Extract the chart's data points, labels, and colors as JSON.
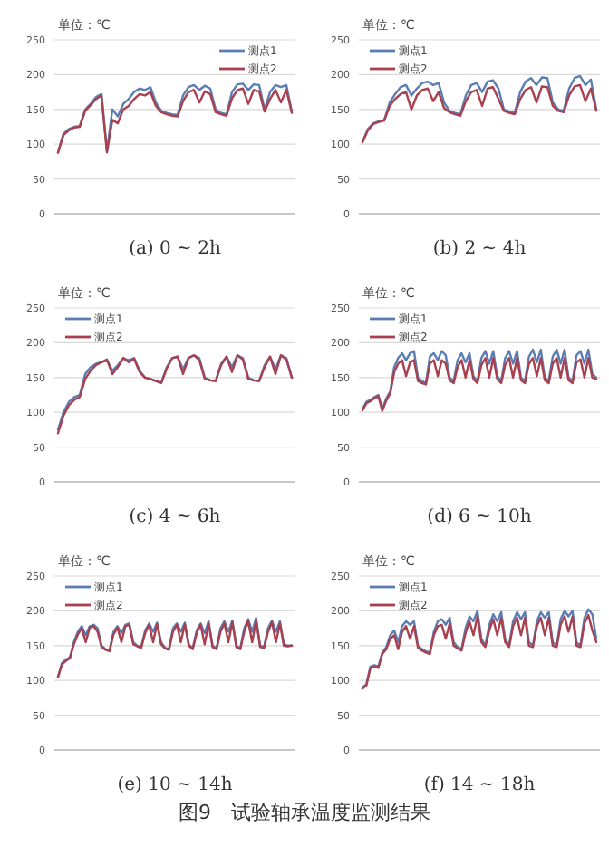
{
  "chart_data": [
    {
      "type": "line",
      "xlabel": "(a) 0 ~ 2h",
      "ylabel": "单位：℃",
      "ylim": [
        0,
        250
      ],
      "yticks": [
        0,
        50,
        100,
        150,
        200,
        250
      ],
      "grid": "y",
      "legend": "top right",
      "tick_labels": "y",
      "categories": [
        null,
        null,
        null,
        null,
        null,
        null,
        null,
        null,
        null,
        null,
        null,
        null,
        null,
        null,
        null,
        null,
        null,
        null,
        null,
        null,
        null,
        null,
        null,
        null,
        null,
        null,
        null,
        null,
        null,
        null,
        null,
        null,
        null,
        null,
        null,
        null,
        null,
        null,
        null,
        null,
        null,
        null,
        null,
        null
      ],
      "series": [
        {
          "name": "测点1",
          "color": "#5b7db3",
          "values": [
            88,
            115,
            122,
            125,
            126,
            150,
            158,
            168,
            172,
            90,
            150,
            140,
            158,
            165,
            175,
            180,
            178,
            182,
            160,
            148,
            145,
            143,
            142,
            170,
            182,
            185,
            178,
            184,
            180,
            150,
            145,
            143,
            175,
            186,
            187,
            178,
            186,
            185,
            150,
            175,
            185,
            182,
            185,
            147
          ]
        },
        {
          "name": "测点2",
          "color": "#a8404f",
          "values": [
            88,
            113,
            120,
            124,
            125,
            148,
            156,
            165,
            170,
            88,
            135,
            130,
            150,
            155,
            165,
            172,
            170,
            175,
            155,
            146,
            143,
            141,
            140,
            162,
            175,
            178,
            160,
            176,
            172,
            146,
            143,
            141,
            166,
            178,
            180,
            158,
            178,
            176,
            147,
            165,
            178,
            160,
            178,
            145
          ]
        }
      ]
    },
    {
      "type": "line",
      "xlabel": "(b) 2 ~ 4h",
      "ylabel": "单位：℃",
      "ylim": [
        0,
        250
      ],
      "yticks": [
        0,
        50,
        100,
        150,
        200,
        250
      ],
      "grid": "y",
      "legend": "top left",
      "tick_labels": "y",
      "categories": [
        null,
        null,
        null,
        null,
        null,
        null,
        null,
        null,
        null,
        null,
        null,
        null,
        null,
        null,
        null,
        null,
        null,
        null,
        null,
        null,
        null,
        null,
        null,
        null,
        null,
        null,
        null,
        null,
        null,
        null,
        null,
        null,
        null,
        null,
        null,
        null,
        null,
        null,
        null,
        null,
        null,
        null,
        null,
        null
      ],
      "series": [
        {
          "name": "测点1",
          "color": "#5b7db3",
          "values": [
            103,
            122,
            130,
            133,
            135,
            160,
            172,
            182,
            185,
            170,
            180,
            188,
            190,
            185,
            188,
            160,
            148,
            145,
            143,
            170,
            185,
            188,
            175,
            190,
            192,
            180,
            150,
            147,
            145,
            175,
            190,
            195,
            185,
            196,
            195,
            160,
            150,
            148,
            180,
            195,
            198,
            185,
            193,
            150
          ]
        },
        {
          "name": "测点2",
          "color": "#a8404f",
          "values": [
            103,
            120,
            129,
            132,
            134,
            155,
            165,
            172,
            175,
            150,
            170,
            178,
            180,
            162,
            175,
            152,
            146,
            143,
            141,
            162,
            175,
            178,
            155,
            180,
            182,
            165,
            148,
            145,
            143,
            165,
            178,
            182,
            160,
            183,
            182,
            155,
            148,
            146,
            170,
            183,
            185,
            162,
            180,
            148
          ]
        }
      ]
    },
    {
      "type": "line",
      "xlabel": "(c) 4 ~ 6h",
      "ylabel": "单位：℃",
      "ylim": [
        0,
        250
      ],
      "yticks": [
        0,
        50,
        100,
        150,
        200,
        250
      ],
      "grid": "y",
      "legend": "top left",
      "tick_labels": "y",
      "categories": [
        null,
        null,
        null,
        null,
        null,
        null,
        null,
        null,
        null,
        null,
        null,
        null,
        null,
        null,
        null,
        null,
        null,
        null,
        null,
        null,
        null,
        null,
        null,
        null,
        null,
        null,
        null,
        null,
        null,
        null,
        null,
        null,
        null,
        null,
        null,
        null,
        null,
        null,
        null,
        null,
        null,
        null,
        null,
        null
      ],
      "series": [
        {
          "name": "测点1",
          "color": "#5b7db3",
          "values": [
            75,
            100,
            115,
            122,
            125,
            155,
            165,
            170,
            172,
            175,
            160,
            168,
            178,
            175,
            178,
            160,
            150,
            148,
            145,
            143,
            165,
            178,
            180,
            162,
            178,
            182,
            178,
            150,
            146,
            145,
            170,
            180,
            165,
            182,
            178,
            150,
            146,
            145,
            168,
            180,
            162,
            182,
            178,
            150
          ]
        },
        {
          "name": "测点2",
          "color": "#a8404f",
          "values": [
            70,
            95,
            110,
            118,
            122,
            148,
            160,
            168,
            172,
            176,
            155,
            165,
            178,
            172,
            177,
            158,
            150,
            148,
            145,
            142,
            163,
            178,
            180,
            155,
            178,
            182,
            175,
            148,
            146,
            145,
            168,
            180,
            158,
            182,
            176,
            148,
            146,
            145,
            165,
            180,
            155,
            182,
            176,
            150
          ]
        }
      ]
    },
    {
      "type": "line",
      "xlabel": "(d) 6 ~ 10h",
      "ylabel": "单位：℃",
      "ylim": [
        0,
        250
      ],
      "yticks": [
        0,
        50,
        100,
        150,
        200,
        250
      ],
      "grid": "y",
      "legend": "top left",
      "tick_labels": "y",
      "categories": [
        null,
        null,
        null,
        null,
        null,
        null,
        null,
        null,
        null,
        null,
        null,
        null,
        null,
        null,
        null,
        null,
        null,
        null,
        null,
        null,
        null,
        null,
        null,
        null,
        null,
        null,
        null,
        null,
        null,
        null,
        null,
        null,
        null,
        null,
        null,
        null,
        null,
        null,
        null,
        null,
        null,
        null,
        null,
        null,
        null,
        null,
        null,
        null,
        null,
        null,
        null,
        null,
        null,
        null,
        null,
        null,
        null,
        null,
        null,
        null
      ],
      "series": [
        {
          "name": "测点1",
          "color": "#5b7db3",
          "values": [
            105,
            115,
            118,
            122,
            125,
            105,
            120,
            130,
            165,
            178,
            185,
            175,
            185,
            188,
            150,
            145,
            142,
            180,
            185,
            175,
            188,
            182,
            150,
            145,
            175,
            185,
            172,
            185,
            152,
            145,
            178,
            188,
            170,
            188,
            152,
            145,
            178,
            188,
            170,
            188,
            150,
            145,
            180,
            190,
            172,
            190,
            150,
            145,
            180,
            190,
            170,
            190,
            150,
            145,
            182,
            188,
            170,
            190,
            155,
            150
          ]
        },
        {
          "name": "测点2",
          "color": "#a8404f",
          "values": [
            103,
            113,
            116,
            120,
            123,
            102,
            117,
            127,
            158,
            170,
            175,
            152,
            172,
            175,
            145,
            142,
            140,
            170,
            175,
            152,
            175,
            170,
            146,
            142,
            165,
            175,
            150,
            175,
            148,
            142,
            168,
            178,
            150,
            178,
            148,
            142,
            168,
            178,
            150,
            178,
            146,
            142,
            170,
            178,
            152,
            178,
            146,
            142,
            170,
            178,
            150,
            178,
            146,
            142,
            172,
            176,
            150,
            178,
            150,
            148
          ]
        }
      ]
    },
    {
      "type": "line",
      "xlabel": "(e) 10 ~ 14h",
      "ylabel": "单位：℃",
      "ylim": [
        0,
        250
      ],
      "yticks": [
        0,
        50,
        100,
        150,
        200,
        250
      ],
      "grid": "y",
      "legend": "top left",
      "tick_labels": "y",
      "categories": [
        null,
        null,
        null,
        null,
        null,
        null,
        null,
        null,
        null,
        null,
        null,
        null,
        null,
        null,
        null,
        null,
        null,
        null,
        null,
        null,
        null,
        null,
        null,
        null,
        null,
        null,
        null,
        null,
        null,
        null,
        null,
        null,
        null,
        null,
        null,
        null,
        null,
        null,
        null,
        null,
        null,
        null,
        null,
        null,
        null,
        null,
        null,
        null,
        null,
        null,
        null,
        null,
        null,
        null,
        null,
        null,
        null,
        null,
        null,
        null
      ],
      "series": [
        {
          "name": "测点1",
          "color": "#5b7db3",
          "values": [
            105,
            125,
            130,
            133,
            155,
            170,
            178,
            165,
            178,
            180,
            175,
            150,
            145,
            143,
            170,
            178,
            168,
            180,
            182,
            155,
            150,
            148,
            172,
            182,
            170,
            183,
            155,
            147,
            145,
            175,
            182,
            170,
            183,
            152,
            146,
            172,
            182,
            168,
            185,
            150,
            146,
            175,
            185,
            170,
            186,
            150,
            146,
            175,
            188,
            170,
            190,
            150,
            148,
            175,
            186,
            170,
            185,
            152,
            150,
            150
          ]
        },
        {
          "name": "测点2",
          "color": "#a8404f",
          "values": [
            105,
            123,
            128,
            132,
            152,
            166,
            175,
            155,
            176,
            178,
            170,
            148,
            144,
            142,
            166,
            176,
            155,
            178,
            180,
            152,
            149,
            147,
            168,
            180,
            155,
            181,
            152,
            146,
            144,
            170,
            180,
            155,
            181,
            150,
            145,
            168,
            180,
            152,
            182,
            148,
            145,
            170,
            182,
            155,
            184,
            148,
            145,
            170,
            185,
            155,
            186,
            148,
            147,
            170,
            184,
            155,
            182,
            150,
            149,
            150
          ]
        }
      ]
    },
    {
      "type": "line",
      "xlabel": "(f) 14 ~ 18h",
      "ylabel": "单位：℃",
      "ylim": [
        0,
        250
      ],
      "yticks": [
        0,
        50,
        100,
        150,
        200,
        250
      ],
      "grid": "y",
      "legend": "top left",
      "tick_labels": "y",
      "annotations": [
        "图9　试验轴承温度监测结果"
      ],
      "categories": [
        null,
        null,
        null,
        null,
        null,
        null,
        null,
        null,
        null,
        null,
        null,
        null,
        null,
        null,
        null,
        null,
        null,
        null,
        null,
        null,
        null,
        null,
        null,
        null,
        null,
        null,
        null,
        null,
        null,
        null,
        null,
        null,
        null,
        null,
        null,
        null,
        null,
        null,
        null,
        null,
        null,
        null,
        null,
        null,
        null,
        null,
        null,
        null,
        null,
        null,
        null,
        null,
        null,
        null,
        null,
        null,
        null,
        null,
        null,
        null
      ],
      "series": [
        {
          "name": "测点1",
          "color": "#5b7db3",
          "values": [
            90,
            95,
            120,
            122,
            120,
            140,
            148,
            165,
            172,
            155,
            178,
            185,
            180,
            185,
            150,
            145,
            142,
            140,
            170,
            185,
            188,
            180,
            190,
            155,
            148,
            145,
            175,
            192,
            185,
            200,
            160,
            150,
            180,
            195,
            185,
            198,
            160,
            150,
            185,
            198,
            188,
            198,
            155,
            150,
            185,
            198,
            190,
            198,
            155,
            150,
            188,
            200,
            192,
            200,
            155,
            150,
            190,
            202,
            195,
            160
          ]
        },
        {
          "name": "测点2",
          "color": "#a8404f",
          "values": [
            88,
            93,
            118,
            120,
            118,
            138,
            145,
            160,
            165,
            145,
            170,
            178,
            160,
            178,
            147,
            143,
            140,
            138,
            165,
            178,
            180,
            160,
            182,
            150,
            146,
            143,
            168,
            185,
            165,
            192,
            155,
            148,
            172,
            188,
            165,
            190,
            155,
            148,
            178,
            190,
            165,
            190,
            150,
            148,
            178,
            190,
            165,
            190,
            150,
            148,
            180,
            192,
            170,
            192,
            150,
            148,
            182,
            194,
            172,
            155
          ]
        }
      ]
    }
  ]
}
